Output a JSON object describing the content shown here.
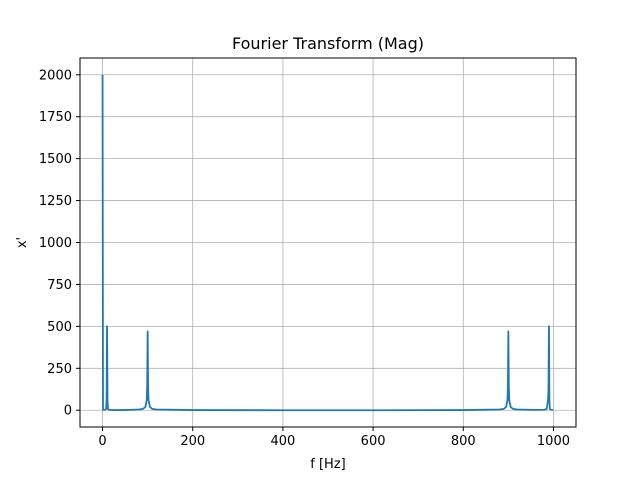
{
  "chart_data": {
    "type": "line",
    "title": "Fourier Transform (Mag)",
    "xlabel": "f [Hz]",
    "ylabel": "x'",
    "xlim": [
      -50,
      1050
    ],
    "ylim": [
      -100,
      2100
    ],
    "xticks": [
      0,
      200,
      400,
      600,
      800,
      1000
    ],
    "yticks": [
      0,
      250,
      500,
      750,
      1000,
      1250,
      1500,
      1750,
      2000
    ],
    "grid": true,
    "legend": "none",
    "line_color": "#1f77b4",
    "series": [
      {
        "x": [
          0,
          1,
          2,
          4,
          6,
          8,
          9,
          10,
          11,
          12,
          14,
          20,
          40,
          60,
          80,
          90,
          95,
          98,
          99,
          100,
          101,
          102,
          105,
          110,
          120,
          200,
          400,
          600,
          800,
          880,
          890,
          895,
          898,
          899,
          900,
          901,
          902,
          905,
          910,
          920,
          960,
          980,
          985,
          988,
          989,
          990,
          991,
          992,
          994,
          996,
          998,
          999
        ],
        "y": [
          2000,
          3,
          2,
          2,
          3,
          8,
          60,
          500,
          60,
          8,
          3,
          1,
          1,
          2,
          4,
          8,
          20,
          60,
          140,
          470,
          140,
          60,
          20,
          8,
          4,
          1,
          0,
          0,
          1,
          4,
          8,
          20,
          60,
          140,
          470,
          140,
          60,
          20,
          8,
          4,
          2,
          3,
          8,
          60,
          120,
          500,
          60,
          8,
          3,
          2,
          2,
          3
        ]
      }
    ]
  }
}
